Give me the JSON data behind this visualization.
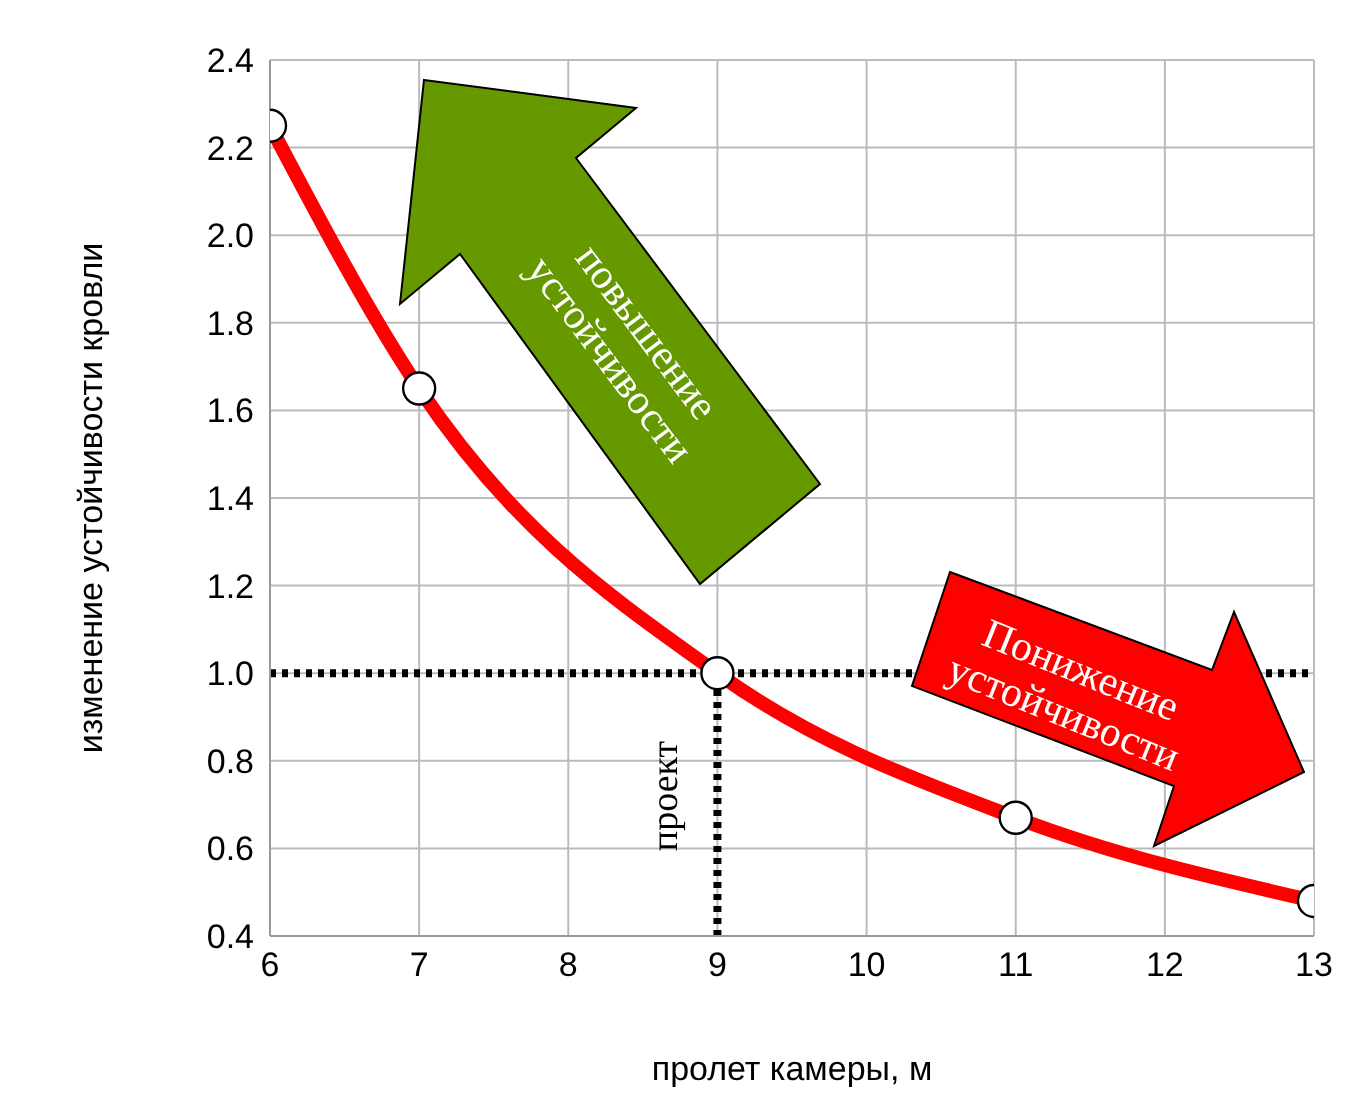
{
  "chart_data": {
    "type": "line",
    "xlabel": "пролет камеры, м",
    "ylabel": "изменение устойчивости кровли",
    "x": [
      6,
      7,
      9,
      11,
      13
    ],
    "series": [
      {
        "color": "#ff0000",
        "values": [
          2.25,
          1.65,
          1.0,
          0.67,
          0.48
        ]
      }
    ],
    "xlim": [
      6,
      13
    ],
    "xticks": [
      6,
      7,
      8,
      9,
      10,
      11,
      12,
      13
    ],
    "ylim": [
      0.4,
      2.4
    ],
    "yticks": [
      0.4,
      0.6,
      0.8,
      {
        "value": 1,
        "label": "1.0"
      },
      1.2,
      1.4,
      1.6,
      1.8,
      {
        "value": 2,
        "label": "2.0"
      },
      2.2,
      2.4
    ],
    "grid": true,
    "legend": false,
    "marker": "circle",
    "line_style": "solid",
    "ref_lines": [
      {
        "axis": "y",
        "value": 1,
        "line_style": "dotted",
        "color": "#000000"
      },
      {
        "axis": "x",
        "value": 9,
        "label": "проект",
        "line_style": "dotted",
        "color": "#000000"
      }
    ],
    "annotations": [
      "повышение устойчивости",
      "Понижение устойчивости"
    ]
  }
}
